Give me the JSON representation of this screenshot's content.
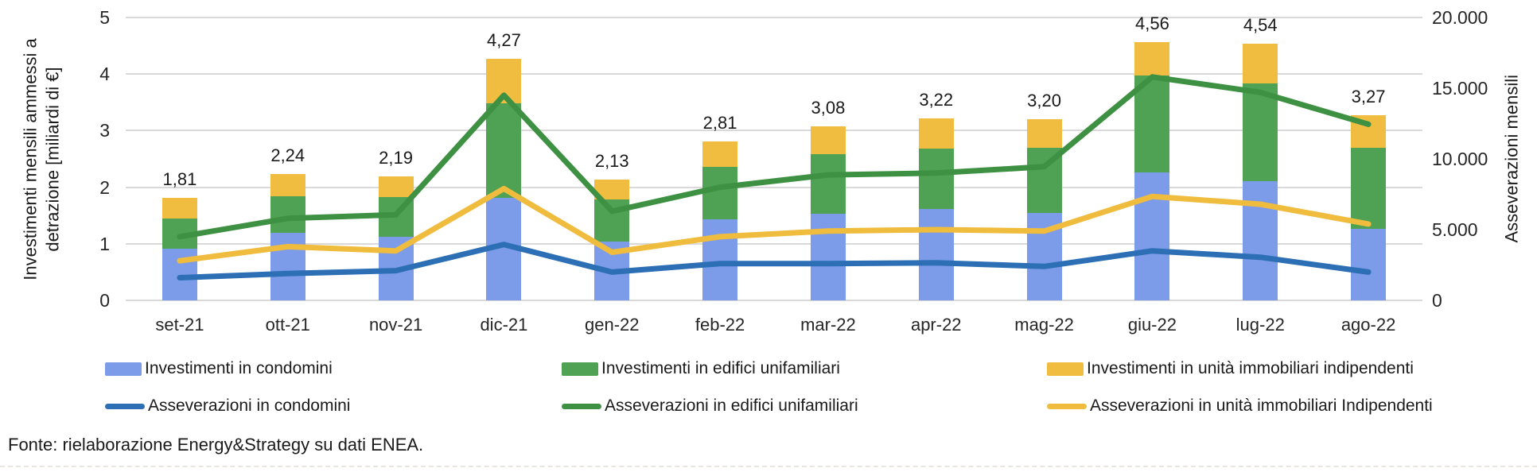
{
  "chart_data": {
    "type": "combo-stacked-bar-line",
    "categories": [
      "set-21",
      "ott-21",
      "nov-21",
      "dic-21",
      "gen-22",
      "feb-22",
      "mar-22",
      "apr-22",
      "mag-22",
      "giu-22",
      "lug-22",
      "ago-22"
    ],
    "bar_series": [
      {
        "name": "Investimenti in condomini",
        "color": "#7C9BE8",
        "values": [
          0.92,
          1.2,
          1.12,
          1.81,
          1.04,
          1.43,
          1.53,
          1.61,
          1.54,
          2.26,
          2.1,
          1.27
        ]
      },
      {
        "name": "Investimenti in edifici unifamiliari",
        "color": "#4FA153",
        "values": [
          0.53,
          0.64,
          0.7,
          1.68,
          0.75,
          0.93,
          1.05,
          1.07,
          1.16,
          1.72,
          1.74,
          1.43
        ]
      },
      {
        "name": "Investimenti in unità immobiliari indipendenti",
        "color": "#F0BD41",
        "values": [
          0.36,
          0.4,
          0.37,
          0.78,
          0.34,
          0.45,
          0.5,
          0.54,
          0.5,
          0.58,
          0.7,
          0.57
        ]
      }
    ],
    "bar_total_labels": [
      "1,81",
      "2,24",
      "2,19",
      "4,27",
      "2,13",
      "2,81",
      "3,08",
      "3,22",
      "3,20",
      "4,56",
      "4,54",
      "3,27"
    ],
    "line_series": [
      {
        "name": "Asseverazioni in condomini",
        "color": "#2D6FB5",
        "values": [
          1600,
          1900,
          2100,
          3950,
          2000,
          2600,
          2600,
          2650,
          2400,
          3500,
          3050,
          2000
        ]
      },
      {
        "name": "Asseverazioni in edifici unifamiliari",
        "color": "#3E9142",
        "values": [
          4500,
          5800,
          6050,
          14500,
          6300,
          8000,
          8870,
          9000,
          9450,
          15800,
          14700,
          12450
        ]
      },
      {
        "name": "Asseverazioni in unità immobiliari Indipendenti",
        "color": "#EFBC3D",
        "values": [
          2800,
          3800,
          3500,
          7900,
          3400,
          4500,
          4900,
          5000,
          4900,
          7350,
          6800,
          5400
        ]
      }
    ],
    "left_axis": {
      "title": "Investimenti mensili ammessi a detrazione [miliardi di €]",
      "min": 0,
      "max": 5,
      "ticks": [
        "0",
        "1",
        "2",
        "3",
        "4",
        "5"
      ],
      "tick_values": [
        0,
        1,
        2,
        3,
        4,
        5
      ]
    },
    "right_axis": {
      "title": "Asseverazioni mensili",
      "min": 0,
      "max": 20000,
      "ticks": [
        "0",
        "5.000",
        "10.000",
        "15.000",
        "20.000"
      ],
      "tick_values": [
        0,
        5000,
        10000,
        15000,
        20000
      ]
    },
    "grid": true,
    "legend_position": "bottom"
  },
  "legend": {
    "items": [
      {
        "type": "bar",
        "color": "#7C9BE8",
        "label": "Investimenti in condomini"
      },
      {
        "type": "bar",
        "color": "#4FA153",
        "label": "Investimenti in edifici unifamiliari"
      },
      {
        "type": "bar",
        "color": "#F0BD41",
        "label": "Investimenti in unità immobiliari indipendenti"
      },
      {
        "type": "line",
        "color": "#2D6FB5",
        "label": "Asseverazioni in condomini"
      },
      {
        "type": "line",
        "color": "#3E9142",
        "label": "Asseverazioni in edifici unifamiliari"
      },
      {
        "type": "line",
        "color": "#EFBC3D",
        "label": "Asseverazioni in unità immobiliari Indipendenti"
      }
    ]
  },
  "footer": {
    "source": "Fonte: rielaborazione Energy&Strategy su dati ENEA."
  }
}
